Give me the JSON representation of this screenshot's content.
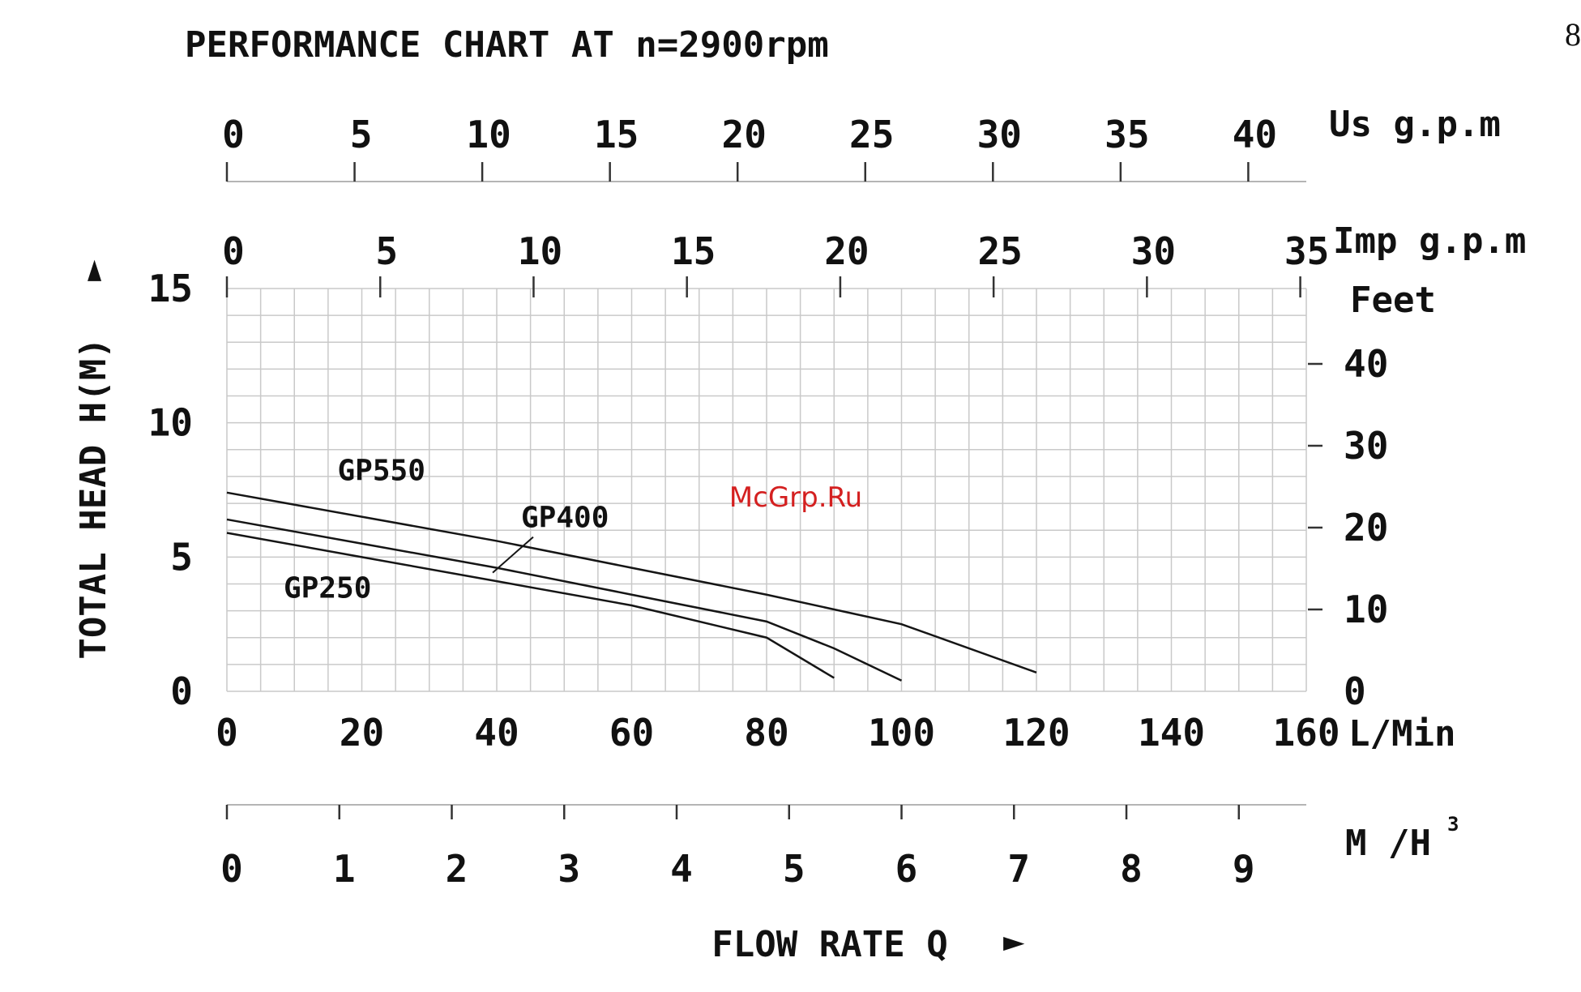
{
  "page": {
    "number": "8"
  },
  "watermark": "McGrp.Ru",
  "chart_data": {
    "type": "line",
    "title": "PERFORMANCE CHART AT n=2900rpm",
    "xlabel": "FLOW RATE Q",
    "xlabel_arrow": "►",
    "ylabel": "TOTAL HEAD H(M)",
    "ylabel_arrow": "►",
    "grid": true,
    "primary_x": {
      "unit": "L/Min",
      "range": [
        0,
        160
      ],
      "ticks": [
        "0",
        "20",
        "40",
        "60",
        "80",
        "100",
        "120",
        "140",
        "160"
      ]
    },
    "primary_y": {
      "unit": "M",
      "range": [
        0,
        15
      ],
      "ticks": [
        "0",
        "5",
        "10",
        "15"
      ]
    },
    "secondary_axes": {
      "us_gpm": {
        "label": "Us g.p.m",
        "ticks": [
          "0",
          "5",
          "10",
          "15",
          "20",
          "25",
          "30",
          "35",
          "40"
        ],
        "values": [
          0,
          5,
          10,
          15,
          20,
          25,
          30,
          35,
          40
        ],
        "lpm_per_unit": 3.785
      },
      "imp_gpm": {
        "label": "Imp g.p.m",
        "ticks": [
          "0",
          "5",
          "10",
          "15",
          "20",
          "25",
          "30",
          "35"
        ],
        "values": [
          0,
          5,
          10,
          15,
          20,
          25,
          30,
          35
        ],
        "lpm_per_unit": 4.546
      },
      "feet": {
        "label": "Feet",
        "ticks": [
          "0",
          "10",
          "20",
          "30",
          "40"
        ],
        "values": [
          0,
          10,
          20,
          30,
          40
        ],
        "m_per_unit": 0.3048
      },
      "m3h": {
        "label_main": "M /H",
        "label_sup": "3",
        "ticks": [
          "0",
          "1",
          "2",
          "3",
          "4",
          "5",
          "6",
          "7",
          "8",
          "9"
        ],
        "values": [
          0,
          1,
          2,
          3,
          4,
          5,
          6,
          7,
          8,
          9
        ],
        "lpm_per_unit": 16.667
      }
    },
    "series": [
      {
        "name": "GP550",
        "x": [
          0,
          20,
          40,
          60,
          80,
          100,
          120
        ],
        "y": [
          7.4,
          6.5,
          5.6,
          4.6,
          3.6,
          2.5,
          0.7
        ]
      },
      {
        "name": "GP400",
        "x": [
          0,
          20,
          40,
          60,
          80,
          90,
          100
        ],
        "y": [
          6.4,
          5.5,
          4.6,
          3.6,
          2.6,
          1.6,
          0.4
        ]
      },
      {
        "name": "GP250",
        "x": [
          0,
          20,
          40,
          60,
          80,
          90
        ],
        "y": [
          5.9,
          5.0,
          4.1,
          3.2,
          2.0,
          0.5
        ]
      }
    ]
  }
}
